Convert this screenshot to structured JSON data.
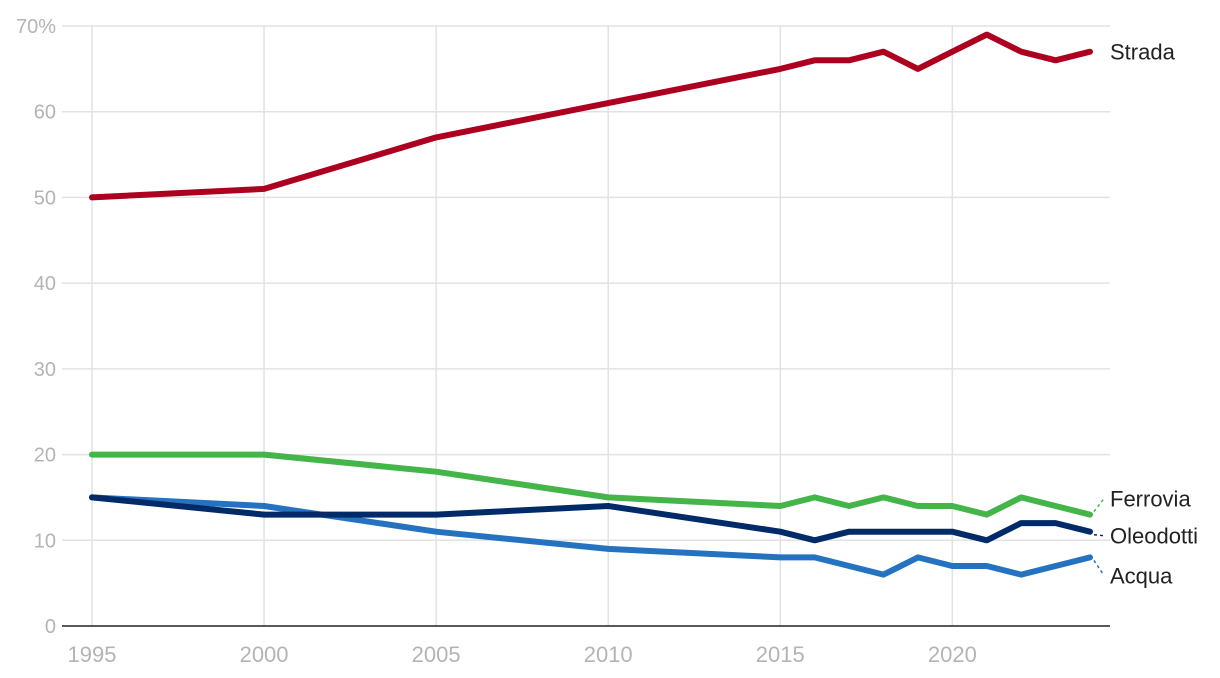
{
  "chart_data": {
    "type": "line",
    "x": [
      1995,
      2000,
      2005,
      2010,
      2015,
      2016,
      2017,
      2018,
      2019,
      2020,
      2021,
      2022,
      2023,
      2024
    ],
    "series": [
      {
        "name": "Strada",
        "color": "#ad0020",
        "values": [
          50,
          51,
          57,
          61,
          65,
          66,
          66,
          67,
          65,
          67,
          69,
          67,
          66,
          67
        ]
      },
      {
        "name": "Ferrovia",
        "color": "#44b549",
        "values": [
          20,
          20,
          18,
          15,
          14,
          15,
          14,
          15,
          14,
          14,
          13,
          15,
          14,
          13
        ]
      },
      {
        "name": "Oleodotti",
        "color": "#002b68",
        "values": [
          15,
          13,
          13,
          14,
          11,
          10,
          11,
          11,
          11,
          11,
          10,
          12,
          12,
          11
        ]
      },
      {
        "name": "Acqua",
        "color": "#2472c0",
        "values": [
          15,
          14,
          11,
          9,
          8,
          8,
          7,
          6,
          8,
          7,
          7,
          6,
          7,
          8
        ]
      }
    ],
    "y_ticks": [
      "0",
      "10",
      "20",
      "30",
      "40",
      "50",
      "60",
      "70%"
    ],
    "x_ticks": [
      "1995",
      "2000",
      "2005",
      "2010",
      "2015",
      "2020"
    ],
    "ylim": [
      0,
      70
    ],
    "xlim": [
      1995,
      2024
    ],
    "grid": true,
    "legend": "inline-right",
    "title": "",
    "xlabel": "",
    "ylabel": ""
  }
}
